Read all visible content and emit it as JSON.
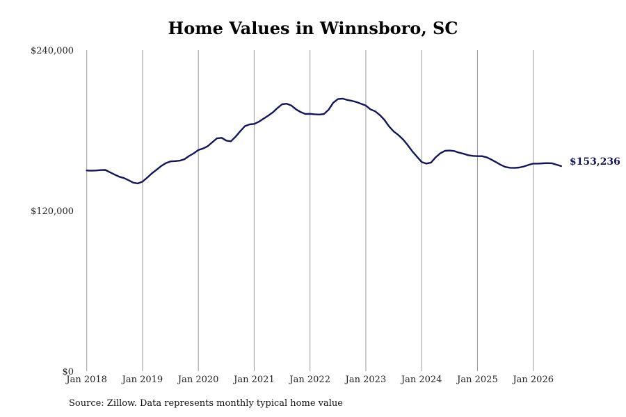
{
  "chart_data": {
    "type": "line",
    "title": "Home Values in Winnsboro, SC",
    "xlabel": "",
    "ylabel": "",
    "ylim": [
      0,
      240000
    ],
    "y_ticks": [
      "$240,000",
      "$120,000",
      "$0"
    ],
    "y_tick_values": [
      240000,
      120000,
      0
    ],
    "x_tick_labels": [
      "Jan 2018",
      "Jan 2019",
      "Jan 2020",
      "Jan 2021",
      "Jan 2022",
      "Jan 2023",
      "Jan 2024",
      "Jan 2025",
      "Jan 2026"
    ],
    "x_tick_values": [
      2018,
      2019,
      2020,
      2021,
      2022,
      2023,
      2024,
      2025,
      2026
    ],
    "xlim": [
      2017.63,
      2027.1
    ],
    "grid": "vertical",
    "line_color": "#14145a",
    "gridline_color": "#999999",
    "end_label": "$153,236",
    "series": [
      {
        "x": [
          2018.0,
          2018.083,
          2018.167,
          2018.25,
          2018.333,
          2018.417,
          2018.5,
          2018.583,
          2018.667,
          2018.75,
          2018.833,
          2018.917,
          2019.0,
          2019.083,
          2019.167,
          2019.25,
          2019.333,
          2019.417,
          2019.5,
          2019.583,
          2019.667,
          2019.75,
          2019.833,
          2019.917,
          2020.0,
          2020.083,
          2020.167,
          2020.25,
          2020.333,
          2020.417,
          2020.5,
          2020.583,
          2020.667,
          2020.75,
          2020.833,
          2020.917,
          2021.0,
          2021.083,
          2021.167,
          2021.25,
          2021.333,
          2021.417,
          2021.5,
          2021.583,
          2021.667,
          2021.75,
          2021.833,
          2021.917,
          2022.0,
          2022.083,
          2022.167,
          2022.25,
          2022.333,
          2022.417,
          2022.5,
          2022.583,
          2022.667,
          2022.75,
          2022.833,
          2022.917,
          2023.0,
          2023.083,
          2023.167,
          2023.25,
          2023.333,
          2023.417,
          2023.5,
          2023.583,
          2023.667,
          2023.75,
          2023.833,
          2023.917,
          2024.0,
          2024.083,
          2024.167,
          2024.25,
          2024.333,
          2024.417,
          2024.5,
          2024.583,
          2024.667,
          2024.75,
          2024.833,
          2024.917,
          2025.0,
          2025.083,
          2025.167,
          2025.25,
          2025.333,
          2025.417,
          2025.5,
          2025.583,
          2025.667,
          2025.75,
          2025.833,
          2025.917,
          2026.0,
          2026.083,
          2026.167,
          2026.25,
          2026.333,
          2026.417,
          2026.5
        ],
        "y": [
          150000,
          149800,
          150000,
          150300,
          150400,
          148600,
          146900,
          145300,
          144300,
          142700,
          140900,
          140300,
          141600,
          144600,
          147800,
          150500,
          153300,
          155500,
          156800,
          157000,
          157300,
          158400,
          160800,
          162800,
          165300,
          166400,
          168100,
          171100,
          174000,
          174400,
          172300,
          171800,
          175200,
          179300,
          183100,
          184400,
          184800,
          186400,
          188700,
          190900,
          193400,
          196700,
          199500,
          199900,
          198500,
          195700,
          193600,
          192200,
          192300,
          192000,
          191800,
          192200,
          195400,
          200700,
          203300,
          203700,
          202700,
          202000,
          201100,
          199800,
          198500,
          195700,
          194200,
          191500,
          187800,
          182900,
          179100,
          176500,
          173200,
          168900,
          164300,
          160200,
          156300,
          155100,
          155900,
          159800,
          162800,
          164700,
          164900,
          164500,
          163300,
          162500,
          161400,
          160900,
          160700,
          160700,
          159800,
          158100,
          156200,
          154200,
          152600,
          152000,
          151900,
          152200,
          153000,
          154200,
          155100,
          155100,
          155300,
          155500,
          155400,
          154300,
          153236
        ]
      }
    ]
  },
  "source": "Source: Zillow. Data represents monthly typical home value"
}
